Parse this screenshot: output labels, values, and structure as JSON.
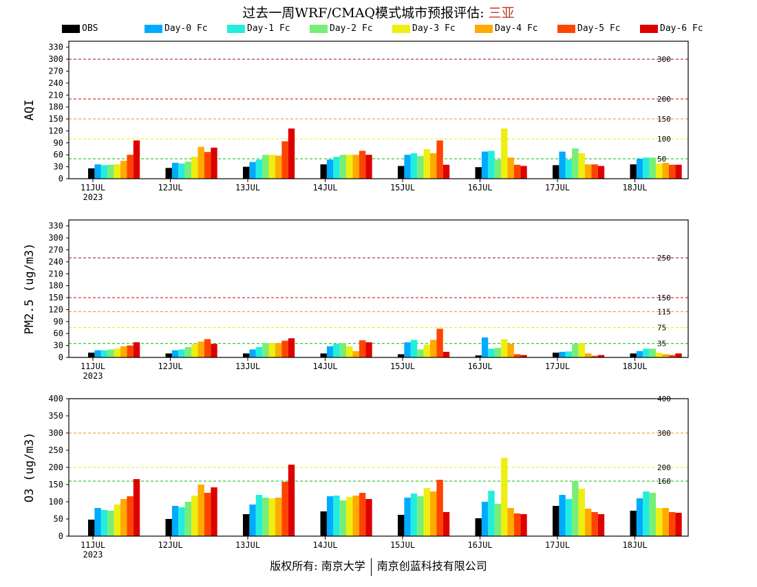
{
  "title": {
    "text": "过去一周WRF/CMAQ模式城市预报评估: ",
    "city": "三亚"
  },
  "footer": {
    "left": "版权所有: 南京大学",
    "right": "南京创蓝科技有限公司"
  },
  "legend": [
    {
      "label": "OBS",
      "color": "#000000"
    },
    {
      "label": "Day-0 Fc",
      "color": "#00aaff"
    },
    {
      "label": "Day-1 Fc",
      "color": "#22eedd"
    },
    {
      "label": "Day-2 Fc",
      "color": "#77ee77"
    },
    {
      "label": "Day-3 Fc",
      "color": "#eeee11"
    },
    {
      "label": "Day-4 Fc",
      "color": "#ffaa00"
    },
    {
      "label": "Day-5 Fc",
      "color": "#ff4400"
    },
    {
      "label": "Day-6 Fc",
      "color": "#dd0000"
    }
  ],
  "chart_data": [
    {
      "type": "bar",
      "ylabel": "AQI",
      "ylim": [
        0,
        345
      ],
      "yticks": [
        0,
        30,
        60,
        90,
        120,
        150,
        180,
        210,
        240,
        270,
        300,
        330
      ],
      "categories": [
        "11JUL",
        "12JUL",
        "13JUL",
        "14JUL",
        "15JUL",
        "16JUL",
        "17JUL",
        "18JUL"
      ],
      "first_category_sublabel": "2023",
      "reference_lines": [
        {
          "value": 300,
          "label": "300",
          "color": "#990044"
        },
        {
          "value": 200,
          "label": "200",
          "color": "#cc0000"
        },
        {
          "value": 150,
          "label": "150",
          "color": "#ff8800"
        },
        {
          "value": 100,
          "label": "100",
          "color": "#eeee00"
        },
        {
          "value": 50,
          "label": "50",
          "color": "#00bb00"
        }
      ],
      "series": [
        {
          "name": "OBS",
          "values": [
            26,
            27,
            30,
            36,
            32,
            29,
            34,
            36
          ]
        },
        {
          "name": "Day-0 Fc",
          "values": [
            36,
            40,
            42,
            48,
            60,
            68,
            68,
            50
          ]
        },
        {
          "name": "Day-1 Fc",
          "values": [
            34,
            38,
            48,
            55,
            64,
            70,
            48,
            53
          ]
        },
        {
          "name": "Day-2 Fc",
          "values": [
            35,
            43,
            60,
            60,
            57,
            48,
            76,
            53
          ]
        },
        {
          "name": "Day-3 Fc",
          "values": [
            36,
            55,
            60,
            60,
            74,
            126,
            64,
            38
          ]
        },
        {
          "name": "Day-4 Fc",
          "values": [
            45,
            80,
            58,
            60,
            64,
            53,
            36,
            40
          ]
        },
        {
          "name": "Day-5 Fc",
          "values": [
            60,
            67,
            94,
            70,
            96,
            35,
            36,
            35
          ]
        },
        {
          "name": "Day-6 Fc",
          "values": [
            96,
            78,
            126,
            60,
            35,
            32,
            32,
            35
          ]
        }
      ]
    },
    {
      "type": "bar",
      "ylabel": "PM2.5 (ug/m3)",
      "ylim": [
        0,
        345
      ],
      "yticks": [
        0,
        30,
        60,
        90,
        120,
        150,
        180,
        210,
        240,
        270,
        300,
        330
      ],
      "categories": [
        "11JUL",
        "12JUL",
        "13JUL",
        "14JUL",
        "15JUL",
        "16JUL",
        "17JUL",
        "18JUL"
      ],
      "first_category_sublabel": "2023",
      "reference_lines": [
        {
          "value": 250,
          "label": "250",
          "color": "#990044"
        },
        {
          "value": 150,
          "label": "150",
          "color": "#cc0000"
        },
        {
          "value": 115,
          "label": "115",
          "color": "#ff8800"
        },
        {
          "value": 75,
          "label": "75",
          "color": "#eeee00"
        },
        {
          "value": 35,
          "label": "35",
          "color": "#00bb00"
        }
      ],
      "series": [
        {
          "name": "OBS",
          "values": [
            12,
            10,
            10,
            10,
            8,
            5,
            12,
            10
          ]
        },
        {
          "name": "Day-0 Fc",
          "values": [
            18,
            18,
            20,
            28,
            38,
            50,
            14,
            16
          ]
        },
        {
          "name": "Day-1 Fc",
          "values": [
            18,
            20,
            26,
            34,
            44,
            22,
            15,
            22
          ]
        },
        {
          "name": "Day-2 Fc",
          "values": [
            20,
            26,
            36,
            36,
            20,
            24,
            34,
            22
          ]
        },
        {
          "name": "Day-3 Fc",
          "values": [
            22,
            34,
            36,
            28,
            32,
            46,
            36,
            12
          ]
        },
        {
          "name": "Day-4 Fc",
          "values": [
            28,
            40,
            36,
            16,
            44,
            34,
            10,
            8
          ]
        },
        {
          "name": "Day-5 Fc",
          "values": [
            30,
            46,
            42,
            43,
            72,
            8,
            4,
            6
          ]
        },
        {
          "name": "Day-6 Fc",
          "values": [
            38,
            34,
            48,
            38,
            14,
            6,
            6,
            10
          ]
        }
      ]
    },
    {
      "type": "bar",
      "ylabel": "O3 (ug/m3)",
      "ylim": [
        0,
        400
      ],
      "yticks": [
        0,
        50,
        100,
        150,
        200,
        250,
        300,
        350,
        400
      ],
      "categories": [
        "11JUL",
        "12JUL",
        "13JUL",
        "14JUL",
        "15JUL",
        "16JUL",
        "17JUL",
        "18JUL"
      ],
      "first_category_sublabel": "2023",
      "reference_lines": [
        {
          "value": 400,
          "label": "400",
          "color": "#990044"
        },
        {
          "value": 300,
          "label": "300",
          "color": "#ff8800"
        },
        {
          "value": 200,
          "label": "200",
          "color": "#eeee00"
        },
        {
          "value": 160,
          "label": "160",
          "color": "#00bb00"
        }
      ],
      "series": [
        {
          "name": "OBS",
          "values": [
            48,
            50,
            64,
            72,
            62,
            52,
            88,
            74
          ]
        },
        {
          "name": "Day-0 Fc",
          "values": [
            82,
            88,
            92,
            116,
            112,
            100,
            120,
            110
          ]
        },
        {
          "name": "Day-1 Fc",
          "values": [
            76,
            84,
            120,
            118,
            124,
            132,
            108,
            130
          ]
        },
        {
          "name": "Day-2 Fc",
          "values": [
            74,
            100,
            112,
            104,
            116,
            94,
            160,
            126
          ]
        },
        {
          "name": "Day-3 Fc",
          "values": [
            92,
            118,
            110,
            114,
            140,
            228,
            138,
            82
          ]
        },
        {
          "name": "Day-4 Fc",
          "values": [
            108,
            150,
            112,
            118,
            130,
            82,
            80,
            82
          ]
        },
        {
          "name": "Day-5 Fc",
          "values": [
            116,
            126,
            158,
            126,
            164,
            66,
            70,
            70
          ]
        },
        {
          "name": "Day-6 Fc",
          "values": [
            166,
            142,
            208,
            108,
            70,
            64,
            64,
            68
          ]
        }
      ]
    }
  ]
}
